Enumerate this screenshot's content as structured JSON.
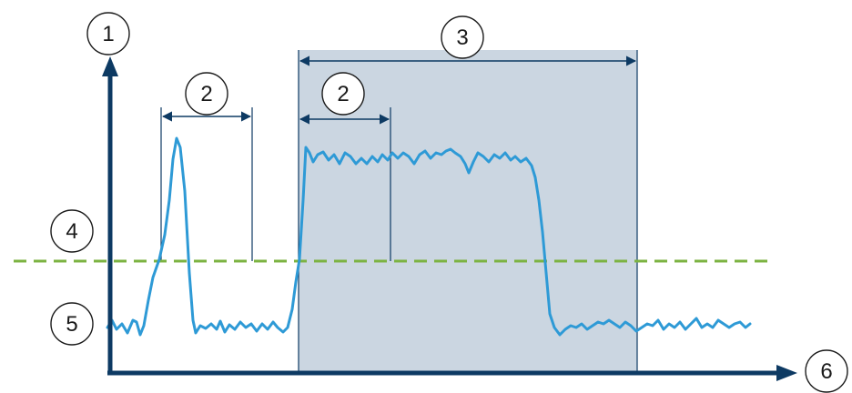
{
  "callouts": [
    {
      "id": "1",
      "text": "1"
    },
    {
      "id": "2",
      "text": "2"
    },
    {
      "id": "3",
      "text": "3"
    },
    {
      "id": "4",
      "text": "4"
    },
    {
      "id": "5",
      "text": "5"
    },
    {
      "id": "6",
      "text": "6"
    }
  ],
  "colors": {
    "axis": "#0d3a63",
    "signal": "#2e9ad6",
    "threshold": "#7cb342",
    "shaded_region": "#cbd6e1",
    "dimension": "#0d3a63",
    "callout_stroke": "#1a1a1a"
  }
}
